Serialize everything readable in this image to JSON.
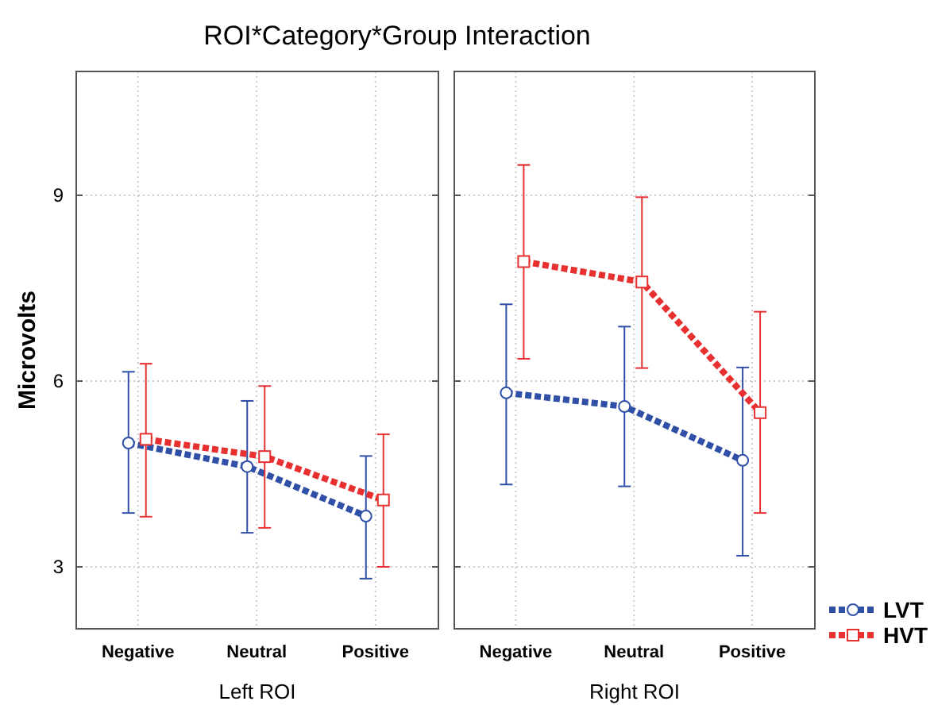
{
  "chart_data": [
    {
      "type": "line",
      "title": "ROI*Category*Group Interaction",
      "xlabel": "Left ROI",
      "ylabel": "Microvolts",
      "categories": [
        "Negative",
        "Neutral",
        "Positive"
      ],
      "ylim": [
        2,
        11
      ],
      "yticks": [
        3,
        6,
        9
      ],
      "grid": true,
      "line_style": "dashed",
      "series": [
        {
          "color": "#3050a8",
          "marker": "circle",
          "values": [
            5.0,
            4.62,
            3.82
          ],
          "errors": [
            [
              3.87,
              6.15
            ],
            [
              3.55,
              5.68
            ],
            [
              2.81,
              4.79
            ]
          ]
        },
        {
          "color": "#e83030",
          "marker": "square",
          "values": [
            5.06,
            4.78,
            4.08
          ],
          "errors": [
            [
              3.81,
              6.28
            ],
            [
              3.63,
              5.92
            ],
            [
              3.0,
              5.14
            ]
          ]
        }
      ]
    },
    {
      "type": "line",
      "xlabel": "Right ROI",
      "categories": [
        "Negative",
        "Neutral",
        "Positive"
      ],
      "ylim": [
        2,
        11
      ],
      "yticks": [
        3,
        6,
        9
      ],
      "tick_labels": "x",
      "grid": true,
      "line_style": "dashed",
      "legend": "bottom right",
      "series": [
        {
          "name": "LVT",
          "color": "#3050a8",
          "marker": "circle",
          "values": [
            5.81,
            5.59,
            4.72
          ],
          "errors": [
            [
              4.33,
              7.24
            ],
            [
              4.3,
              6.88
            ],
            [
              3.18,
              6.22
            ]
          ]
        },
        {
          "name": "HVT",
          "color": "#e83030",
          "marker": "square",
          "values": [
            7.93,
            7.6,
            5.49
          ],
          "errors": [
            [
              6.36,
              9.49
            ],
            [
              6.21,
              8.97
            ],
            [
              3.87,
              7.12
            ]
          ]
        }
      ]
    }
  ]
}
